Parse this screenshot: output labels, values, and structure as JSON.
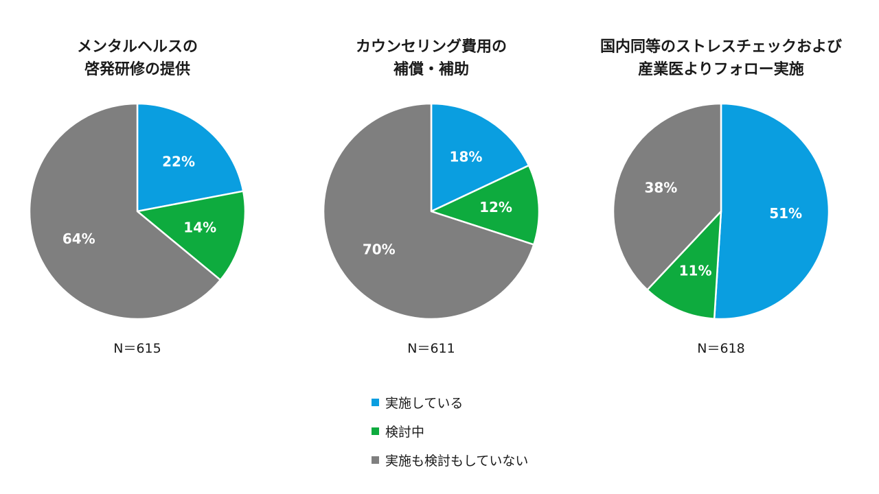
{
  "colors": {
    "implemented": "#0a9ee0",
    "considering": "#0eab3e",
    "neither": "#7f7f7f"
  },
  "legend": [
    {
      "label": "実施している",
      "color": "#0a9ee0"
    },
    {
      "label": "検討中",
      "color": "#0eab3e"
    },
    {
      "label": "実施も検討もしていない",
      "color": "#7f7f7f"
    }
  ],
  "chart_data": [
    {
      "type": "pie",
      "title_lines": [
        "メンタルヘルスの",
        "啓発研修の提供"
      ],
      "n_label": "N＝615",
      "categories": [
        "実施している",
        "検討中",
        "実施も検討もしていない"
      ],
      "values": [
        22,
        14,
        64
      ],
      "value_labels": [
        "22%",
        "14%",
        "64%"
      ]
    },
    {
      "type": "pie",
      "title_lines": [
        "カウンセリング費用の",
        "補償・補助"
      ],
      "n_label": "N＝611",
      "categories": [
        "実施している",
        "検討中",
        "実施も検討もしていない"
      ],
      "values": [
        18,
        12,
        70
      ],
      "value_labels": [
        "18%",
        "12%",
        "70%"
      ]
    },
    {
      "type": "pie",
      "title_lines": [
        "国内同等のストレスチェックおよび",
        "産業医よりフォロー実施"
      ],
      "n_label": "N＝618",
      "categories": [
        "実施している",
        "検討中",
        "実施も検討もしていない"
      ],
      "values": [
        51,
        11,
        38
      ],
      "value_labels": [
        "51%",
        "11%",
        "38%"
      ]
    }
  ]
}
